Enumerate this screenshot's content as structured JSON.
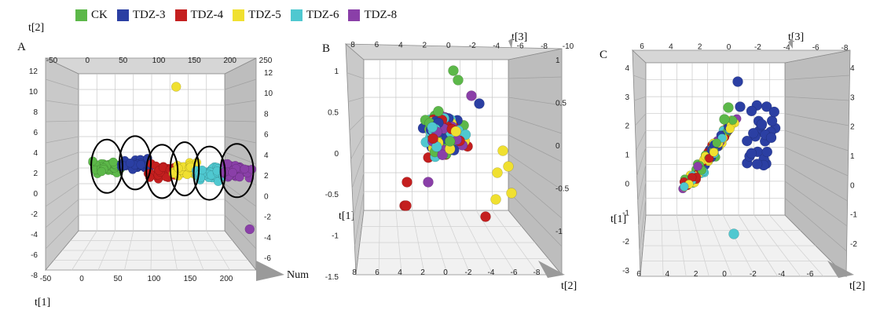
{
  "legend": {
    "items": [
      {
        "label": "CK",
        "color": "#5cb849"
      },
      {
        "label": "TDZ-3",
        "color": "#2b3fa3"
      },
      {
        "label": "TDZ-4",
        "color": "#c41f1f"
      },
      {
        "label": "TDZ-5",
        "color": "#f0e030"
      },
      {
        "label": "TDZ-6",
        "color": "#4fc8d0"
      },
      {
        "label": "TDZ-8",
        "color": "#8a3fa8"
      }
    ]
  },
  "chart_data": [
    {
      "panel_label": "A",
      "type": "scatter",
      "axis_names": {
        "top_left": "t[2]",
        "bottom_left": "t[1]",
        "right": "Num"
      },
      "top_ticks": [
        "-50",
        "0",
        "50",
        "100",
        "150",
        "200",
        "250"
      ],
      "bottom_ticks": [
        "-50",
        "0",
        "50",
        "100",
        "150",
        "200"
      ],
      "left_ticks": [
        "12",
        "10",
        "8",
        "6",
        "4",
        "2",
        "0",
        "-2",
        "-4",
        "-6",
        "-8"
      ],
      "right_ticks": [
        "12",
        "10",
        "8",
        "6",
        "4",
        "2",
        "0",
        "-2",
        "-4",
        "-6"
      ],
      "xlim": [
        -50,
        250
      ],
      "ylim": [
        -8,
        12
      ],
      "groups": [
        {
          "name": "CK",
          "x_range": [
            0,
            40
          ],
          "center_y": 1.2
        },
        {
          "name": "TDZ-3",
          "x_range": [
            40,
            80
          ],
          "center_y": 1.6
        },
        {
          "name": "TDZ-4",
          "x_range": [
            78,
            118
          ],
          "center_y": 0.6
        },
        {
          "name": "TDZ-5",
          "x_range": [
            112,
            148
          ],
          "center_y": 0.9
        },
        {
          "name": "TDZ-6",
          "x_range": [
            145,
            185
          ],
          "center_y": 0.4
        },
        {
          "name": "TDZ-8",
          "x_range": [
            183,
            225
          ],
          "center_y": 0.7
        }
      ],
      "outliers": [
        {
          "group": "TDZ-5",
          "x": 118,
          "y": 10.5
        },
        {
          "group": "TDZ-8",
          "x": 222,
          "y": -6.0
        }
      ],
      "ellipse_count": 6
    },
    {
      "panel_label": "B",
      "type": "scatter",
      "axis_names": {
        "top_right": "t[3]",
        "left": "t[1]",
        "bottom": "t[2]"
      },
      "top_ticks": [
        "8",
        "6",
        "4",
        "2",
        "0",
        "-2",
        "-4",
        "-6",
        "-8",
        "-10"
      ],
      "left_ticks": [
        "1",
        "0.5",
        "0",
        "-0.5",
        "-1",
        "-1.5"
      ],
      "right_ticks": [
        "1",
        "0.5",
        "0",
        "-0.5",
        "-1"
      ],
      "bottom_ticks": [
        "8",
        "6",
        "4",
        "2",
        "0",
        "-2",
        "-4",
        "-6",
        "-8"
      ],
      "ylim": [
        -1.5,
        1
      ]
    },
    {
      "panel_label": "C",
      "type": "scatter",
      "axis_names": {
        "top_right": "t[3]",
        "left": "t[1]",
        "bottom": "t[2]"
      },
      "top_ticks": [
        "6",
        "4",
        "2",
        "0",
        "-2",
        "-4",
        "-6",
        "-8"
      ],
      "left_ticks": [
        "4",
        "3",
        "2",
        "1",
        "0",
        "-1",
        "-2",
        "-3"
      ],
      "right_ticks": [
        "4",
        "3",
        "2",
        "1",
        "0",
        "-1",
        "-2"
      ],
      "bottom_ticks": [
        "6",
        "4",
        "2",
        "0",
        "-2",
        "-4",
        "-6"
      ],
      "ylim": [
        -3,
        4
      ]
    }
  ]
}
